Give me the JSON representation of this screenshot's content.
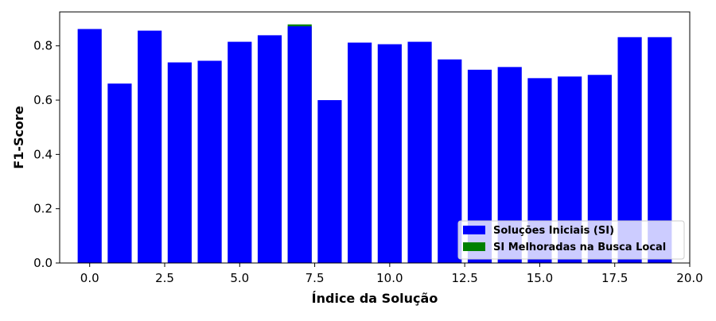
{
  "chart_data": {
    "type": "bar",
    "xlabel": "Índice da Solução",
    "ylabel": "F1-Score",
    "xlim": [
      -1,
      20
    ],
    "ylim": [
      0,
      0.925
    ],
    "x_ticks": [
      0.0,
      2.5,
      5.0,
      7.5,
      10.0,
      12.5,
      15.0,
      17.5,
      20.0
    ],
    "x_tick_labels": [
      "0.0",
      "2.5",
      "5.0",
      "7.5",
      "10.0",
      "12.5",
      "15.0",
      "17.5",
      "20.0"
    ],
    "y_ticks": [
      0.0,
      0.2,
      0.4,
      0.6,
      0.8
    ],
    "y_tick_labels": [
      "0.0",
      "0.2",
      "0.4",
      "0.6",
      "0.8"
    ],
    "grid": false,
    "legend_position": "lower-right",
    "series": [
      {
        "name": "Soluções Iniciais (SI)",
        "color": "#0000ff",
        "x": [
          0,
          1,
          2,
          3,
          4,
          5,
          6,
          7,
          8,
          9,
          10,
          11,
          12,
          13,
          14,
          15,
          16,
          17,
          18,
          19
        ],
        "values": [
          0.862,
          0.661,
          0.856,
          0.739,
          0.745,
          0.815,
          0.839,
          0.872,
          0.6,
          0.812,
          0.806,
          0.815,
          0.75,
          0.712,
          0.722,
          0.681,
          0.687,
          0.693,
          0.832,
          0.832
        ]
      },
      {
        "name": "SI Melhoradas na Busca Local",
        "color": "#008000",
        "x": [
          7
        ],
        "values": [
          0.879
        ]
      }
    ]
  }
}
